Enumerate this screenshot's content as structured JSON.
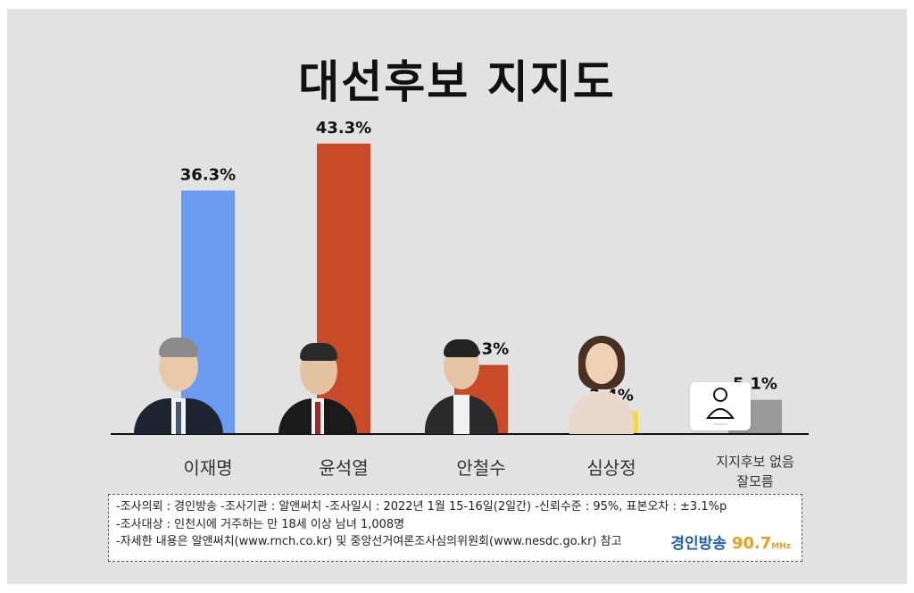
{
  "title": "대선후보 지지도",
  "chart_data": {
    "type": "bar",
    "categories": [
      "이재명",
      "윤석열",
      "안철수",
      "심상정",
      "지지후보 없음\n잘모름"
    ],
    "values": [
      36.3,
      43.3,
      10.3,
      3.4,
      5.1
    ],
    "value_labels": [
      "36.3%",
      "43.3%",
      "10.3%",
      "3.4%",
      "5.1%"
    ],
    "colors": [
      "#6b9cf2",
      "#c84a26",
      "#c84a26",
      "#f2d84a",
      "#9a9a9a"
    ],
    "title": "대선후보 지지도",
    "xlabel": "",
    "ylabel": "",
    "ylim": [
      0,
      45
    ],
    "grid": false,
    "legend": "none"
  },
  "notes": {
    "line1": "-조사의뢰 : 경인방송  -조사기관 : 알앤써치  -조사일시 : 2022년 1월 15-16일(2일간) -신뢰수준 : 95%, 표본오차 : ±3.1%p",
    "line2": "-조사대상 : 인천시에 거주하는 만 18세 이상 남녀 1,008명",
    "line3": "-자세한 내용은 알앤써치(www.rnch.co.kr) 및 중앙선거여론조사심의위원회(www.nesdc.go.kr) 참고"
  },
  "logo": {
    "name": "경인방송",
    "freq": "90.7",
    "unit": "MHz"
  },
  "icons": {
    "photos": [
      "candidate-photo-icon",
      "candidate-photo-icon",
      "candidate-photo-icon",
      "candidate-photo-icon"
    ],
    "placeholder": "person-outline-icon"
  }
}
